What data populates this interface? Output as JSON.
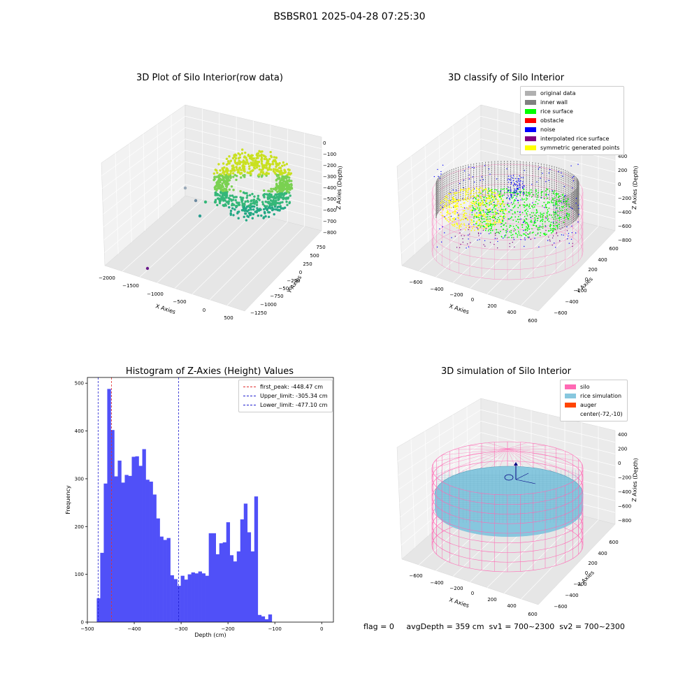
{
  "suptitle": "BSBSR01 2025-04-28 07:25:30",
  "footer": "flag = 0     avgDepth = 359 cm  sv1 = 700~2300  sv2 = 700~2300",
  "colors": {
    "bar": "#5050f8",
    "first_peak": "#e03030",
    "limit": "#2020d0",
    "silo": "#ff69b4",
    "rice_sim": "#87c7de",
    "auger": "#ff4500",
    "inner_wall": "#808080",
    "rice_surface": "#00ff00",
    "obstacle": "#ff0000",
    "noise": "#0000ff",
    "interp": "#800080",
    "symmetric": "#ffff00",
    "original": "#b0b0b0"
  },
  "plots": {
    "raw": {
      "title": "3D Plot of Silo Interior(row data)",
      "xlabel": "X Axies",
      "ylabel": "Y Axies",
      "zlabel": "Z Axies (Depth)",
      "xticks": [
        "−2000",
        "−1500",
        "−1000",
        "−500",
        "0",
        "500"
      ],
      "yticks": [
        "750",
        "500",
        "250",
        "0",
        "−250",
        "−500",
        "−750",
        "−1000",
        "−1250"
      ],
      "zticks": [
        "0",
        "−100",
        "−200",
        "−300",
        "−400",
        "−500",
        "−600",
        "−700",
        "−800"
      ]
    },
    "classify": {
      "title": "3D classify of Silo Interior",
      "xlabel": "X Axies",
      "ylabel": "Y Axies",
      "zlabel": "Z Axies (Depth)",
      "xticks": [
        "−600",
        "−400",
        "−200",
        "0",
        "200",
        "400",
        "600"
      ],
      "yticks": [
        "600",
        "400",
        "200",
        "0",
        "−200",
        "−400",
        "−600"
      ],
      "zticks": [
        "400",
        "200",
        "0",
        "−200",
        "−400",
        "−600",
        "−800"
      ],
      "legend": [
        {
          "label": "original data",
          "color": "#b0b0b0"
        },
        {
          "label": "inner wall",
          "color": "#808080"
        },
        {
          "label": "rice surface",
          "color": "#00ff00"
        },
        {
          "label": "obstacle",
          "color": "#ff0000"
        },
        {
          "label": "noise",
          "color": "#0000ff"
        },
        {
          "label": "interpolated rice surface",
          "color": "#800080"
        },
        {
          "label": "symmetric generated points",
          "color": "#ffff00"
        }
      ]
    },
    "simulation": {
      "title": "3D simulation of Silo Interior",
      "xlabel": "X Axies",
      "ylabel": "Y Axies",
      "zlabel": "Z Axies (Depth)",
      "xticks": [
        "−600",
        "−400",
        "−200",
        "0",
        "200",
        "400",
        "600"
      ],
      "yticks": [
        "600",
        "400",
        "200",
        "0",
        "−200",
        "−400",
        "−600"
      ],
      "zticks": [
        "400",
        "200",
        "0",
        "−200",
        "−400",
        "−600",
        "−800"
      ],
      "legend": [
        {
          "label": "silo",
          "color": "#ff69b4"
        },
        {
          "label": "rice simulation",
          "color": "#87c7de"
        },
        {
          "label": "auger",
          "color": "#ff4500"
        },
        {
          "label": "center(-72,-10)",
          "color": ""
        }
      ]
    }
  },
  "chart_data": {
    "type": "bar",
    "title": "Histogram of Z-Axies (Height) Values",
    "xlabel": "Depth (cm)",
    "ylabel": "Frequency",
    "xlim": [
      -500,
      25
    ],
    "ylim": [
      0,
      512
    ],
    "xticks": [
      -500,
      -400,
      -300,
      -200,
      -100,
      0
    ],
    "xtick_labels": [
      "−500",
      "−400",
      "−300",
      "−200",
      "−100",
      "0"
    ],
    "yticks": [
      0,
      100,
      200,
      300,
      400,
      500
    ],
    "bin_start": -480,
    "bin_width": 7.47,
    "values": [
      50,
      145,
      290,
      488,
      402,
      305,
      338,
      292,
      308,
      306,
      346,
      347,
      327,
      362,
      298,
      294,
      267,
      217,
      179,
      172,
      176,
      98,
      90,
      76,
      97,
      89,
      100,
      104,
      102,
      106,
      102,
      97,
      186,
      186,
      142,
      165,
      167,
      209,
      140,
      127,
      148,
      215,
      248,
      188,
      148,
      263,
      15,
      12,
      6,
      16
    ],
    "vlines": [
      {
        "label": "first_peak: -448.47 cm",
        "x": -448.47,
        "color": "#e03030"
      },
      {
        "label": "Upper_limit: -305.34 cm",
        "x": -305.34,
        "color": "#2020d0"
      },
      {
        "label": "Lower_limit: -477.10 cm",
        "x": -477.1,
        "color": "#2020d0"
      }
    ]
  }
}
